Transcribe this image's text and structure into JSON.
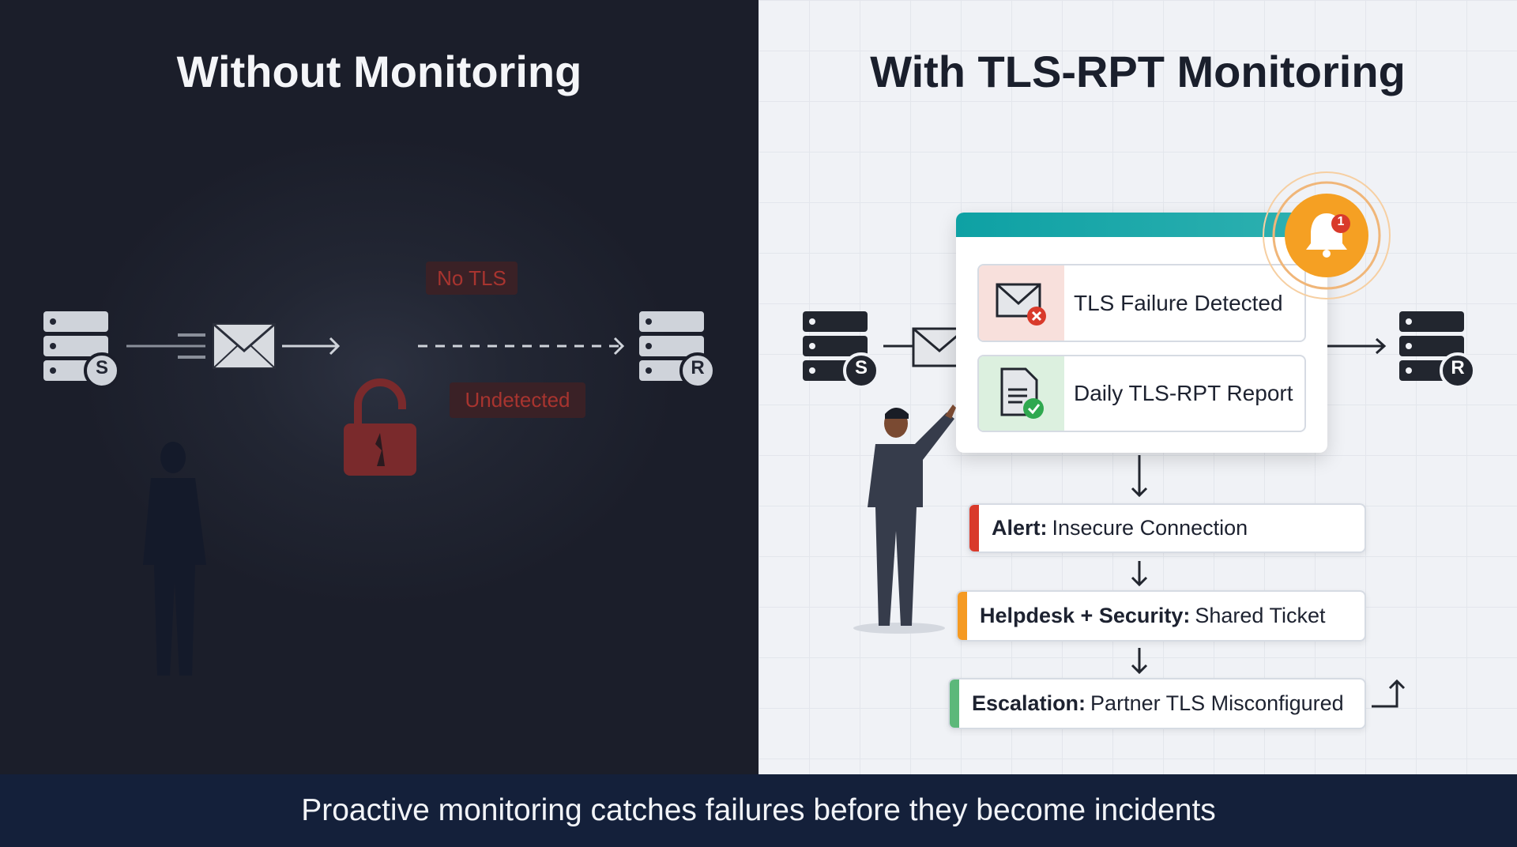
{
  "left": {
    "title": "Without Monitoring",
    "bubble_no_tls": "No TLS",
    "bubble_undetected": "Undetected",
    "sender_label": "S",
    "receiver_label": "R"
  },
  "right": {
    "title": "With TLS-RPT Monitoring",
    "sender_label": "S",
    "receiver_label": "R",
    "notification_count": "1",
    "rows": [
      {
        "label": "TLS Failure Detected",
        "icon": "envelope-error-icon"
      },
      {
        "label": "Daily TLS-RPT Report",
        "icon": "document-check-icon"
      }
    ],
    "steps": [
      {
        "bold": "Alert:",
        "text": "Insecure Connection",
        "color": "#d93a2b"
      },
      {
        "bold": "Helpdesk + Security:",
        "text": "Shared Ticket",
        "color": "#f59a23"
      },
      {
        "bold": "Escalation:",
        "text": "Partner TLS Misconfigured",
        "color": "#5cb87a"
      }
    ]
  },
  "footer": {
    "caption": "Proactive monitoring catches failures before they become incidents"
  },
  "colors": {
    "teal": "#12a3a6",
    "orange": "#f5a023",
    "red": "#d93a2b",
    "green": "#2fa84f",
    "navy": "#14203a"
  }
}
